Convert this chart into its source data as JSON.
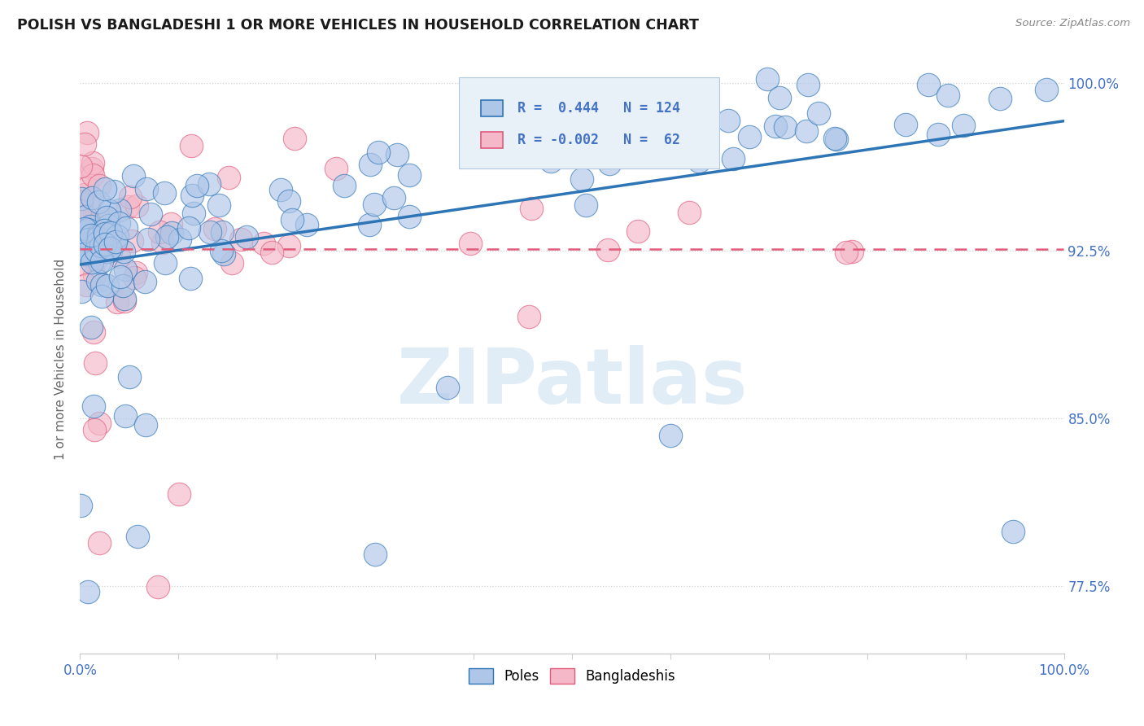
{
  "title": "POLISH VS BANGLADESHI 1 OR MORE VEHICLES IN HOUSEHOLD CORRELATION CHART",
  "source": "Source: ZipAtlas.com",
  "ylabel": "1 or more Vehicles in Household",
  "xrange": [
    0.0,
    1.0
  ],
  "yrange": [
    0.745,
    1.008
  ],
  "blue_color": "#aec6e8",
  "pink_color": "#f4b8c8",
  "trend_blue": "#2e75b6",
  "trend_pink": "#e05a7a",
  "watermark_color": "#c8ddf0",
  "legend_box_color": "#e8f0f8",
  "legend_border": "#b0c8e0",
  "title_color": "#1a1a1a",
  "source_color": "#888888",
  "axis_label_color": "#4472c4",
  "ylabel_color": "#666666",
  "grid_color": "#d0d0d0",
  "spine_color": "#cccccc"
}
